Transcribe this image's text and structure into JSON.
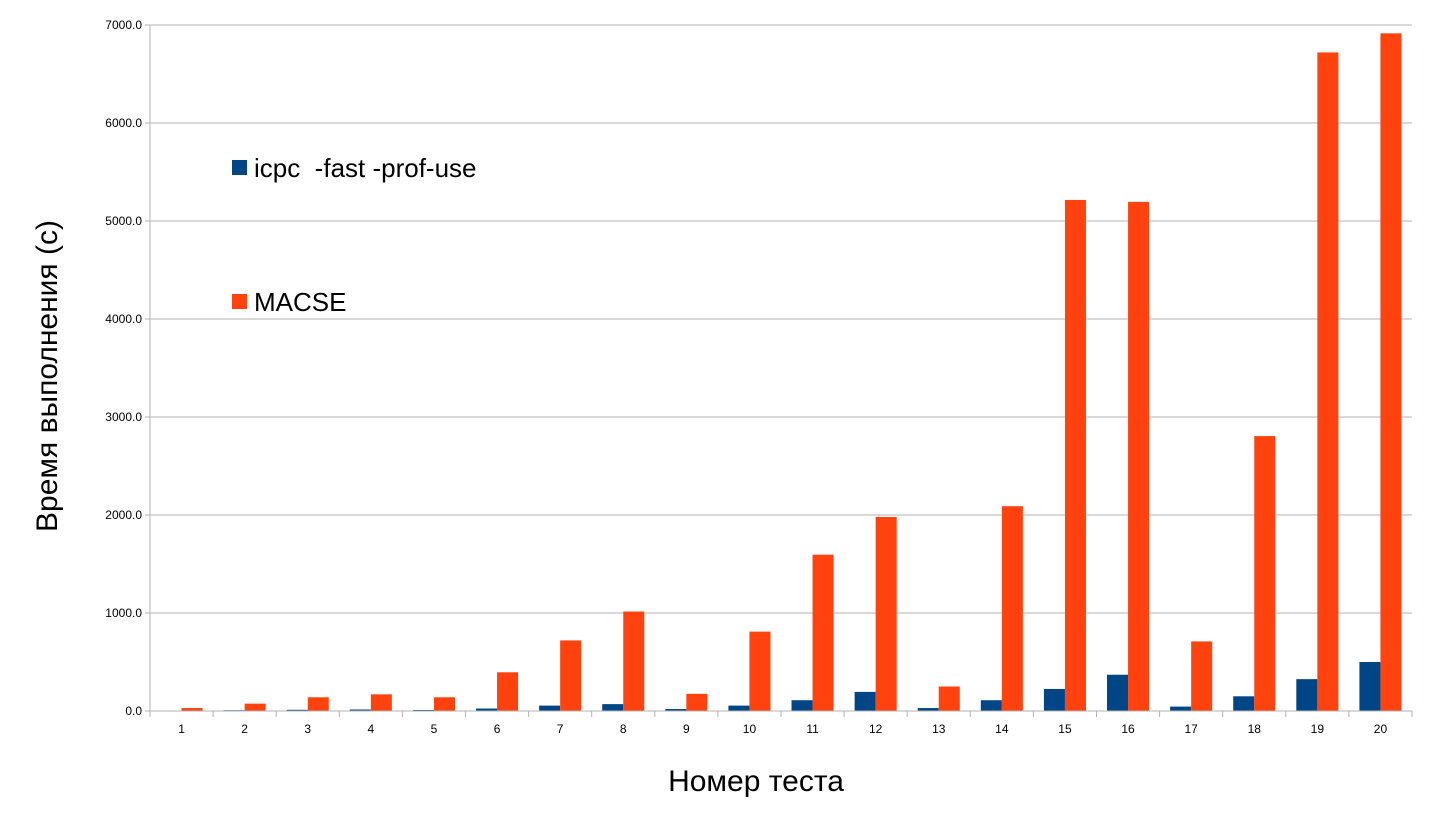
{
  "chart_data": {
    "type": "bar",
    "title": "",
    "xlabel": "Номер теста",
    "ylabel": "Время выполнения (с)",
    "ylim": [
      0,
      7000
    ],
    "y_ticks": [
      "0.0",
      "1000.0",
      "2000.0",
      "3000.0",
      "4000.0",
      "5000.0",
      "6000.0",
      "7000.0"
    ],
    "grid": true,
    "legend_position": "top-left",
    "categories": [
      "1",
      "2",
      "3",
      "4",
      "5",
      "6",
      "7",
      "8",
      "9",
      "10",
      "11",
      "12",
      "13",
      "14",
      "15",
      "16",
      "17",
      "18",
      "19",
      "20"
    ],
    "series": [
      {
        "name": "icpc  -fast -prof-use",
        "color": "#004586",
        "values": [
          3,
          8,
          12,
          15,
          10,
          25,
          55,
          70,
          20,
          55,
          110,
          195,
          30,
          110,
          225,
          370,
          45,
          150,
          325,
          500
        ]
      },
      {
        "name": "MACSE",
        "color": "#ff420e",
        "values": [
          30,
          75,
          140,
          170,
          140,
          395,
          720,
          1015,
          175,
          810,
          1595,
          1980,
          250,
          2090,
          5215,
          5195,
          710,
          2805,
          6720,
          6915
        ]
      }
    ]
  }
}
